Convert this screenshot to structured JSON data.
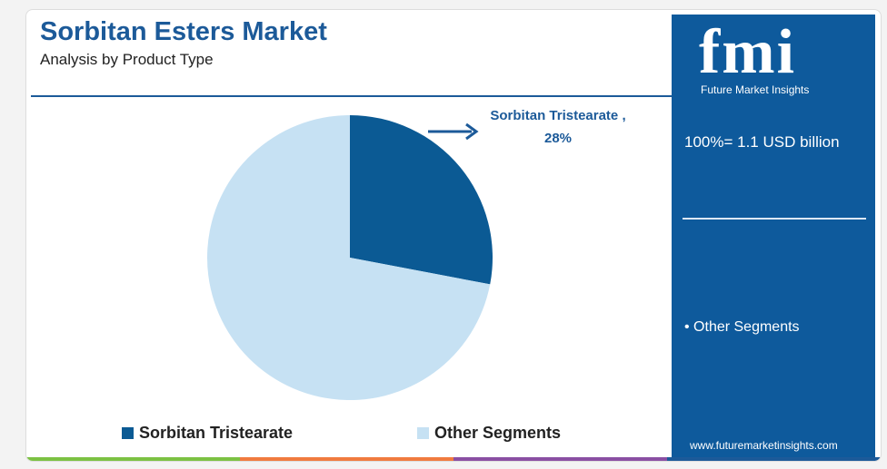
{
  "chart_data": {
    "type": "pie",
    "title": "Sorbitan Esters Market",
    "subtitle": "Analysis by Product Type",
    "categories": [
      "Sorbitan Tristearate",
      "Other Segments"
    ],
    "values": [
      28,
      72
    ],
    "value_labels": [
      "Sorbitan Tristearate , 28%",
      null
    ],
    "colors": [
      "#0b5a94",
      "#c6e1f3"
    ],
    "legend": "bottom"
  },
  "brand": {
    "logo": "fmi",
    "name": "Future Market Insights",
    "total": "100%= 1.1 USD billion",
    "segment_note": "• Other Segments",
    "url": "www.futuremarketinsights.com"
  }
}
